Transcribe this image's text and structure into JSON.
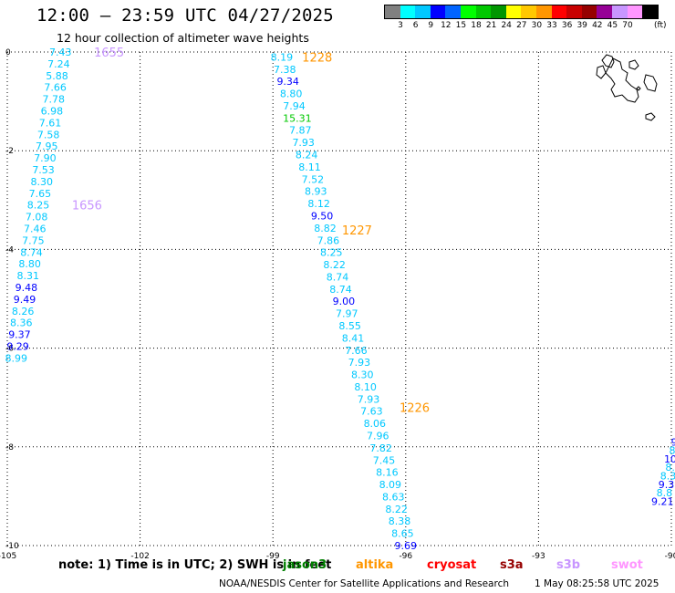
{
  "header": {
    "title": "12:00 — 23:59 UTC 04/27/2025",
    "subtitle": "12 hour collection of altimeter wave heights"
  },
  "legend": {
    "colors": [
      "#808080",
      "#00ffff",
      "#00c8ff",
      "#0000ff",
      "#0064ff",
      "#00ff00",
      "#00c800",
      "#009600",
      "#ffff00",
      "#ffc800",
      "#ff9600",
      "#ff0000",
      "#c80000",
      "#960000",
      "#960096",
      "#c896ff",
      "#ff96ff",
      "#000000"
    ],
    "labels": [
      "3",
      "6",
      "9",
      "12",
      "15",
      "18",
      "21",
      "24",
      "27",
      "30",
      "33",
      "36",
      "39",
      "42",
      "45",
      "70"
    ],
    "unit": "(ft)"
  },
  "axes": {
    "x_ticks": [
      "-105",
      "-102",
      "-99",
      "-96",
      "-93",
      "-90"
    ],
    "y_ticks": [
      "0",
      "-2",
      "-4",
      "-6",
      "-8",
      "-10"
    ]
  },
  "tracks": [
    {
      "time": "1655",
      "time_color": "#c896ff",
      "time_lon": -102.7,
      "time_lat": 0.0,
      "lon_start": -103.8,
      "lon_end": -104.8,
      "lat_start": 0.0,
      "lat_end": -6.2,
      "values": [
        "7.43",
        "7.24",
        "5.88",
        "7.66",
        "7.78",
        "6.98",
        "7.61",
        "7.58",
        "7.95",
        "7.90",
        "7.53",
        "8.30",
        "7.65",
        "8.25",
        "7.08",
        "7.46",
        "7.75",
        "8.74",
        "8.80",
        "8.31",
        "9.48",
        "9.49",
        "8.26",
        "8.36",
        "9.37",
        "9.29",
        "8.99"
      ]
    },
    {
      "time": "1656",
      "time_color": "#c896ff",
      "time_lon": -103.2,
      "time_lat": -3.1
    },
    {
      "time": "1228",
      "time_color": "#ff9600",
      "time_lon": -98.0,
      "time_lat": -0.1,
      "lon_start": -98.8,
      "lon_end": -96.0,
      "lat_start": -0.1,
      "lat_end": -10.0,
      "values": [
        "8.19",
        "7.38",
        "9.34",
        "8.80",
        "7.94",
        "15.31",
        "7.87",
        "7.93",
        "8.24",
        "8.11",
        "7.52",
        "8.93",
        "8.12",
        "9.50",
        "8.82",
        "7.86",
        "8.25",
        "8.22",
        "8.74",
        "8.74",
        "9.00",
        "7.97",
        "8.55",
        "8.41",
        "7.66",
        "7.93",
        "8.30",
        "8.10",
        "7.93",
        "7.63",
        "8.06",
        "7.96",
        "7.82",
        "7.45",
        "8.16",
        "8.09",
        "8.63",
        "8.22",
        "8.38",
        "8.65",
        "9.69"
      ]
    },
    {
      "time": "1227",
      "time_color": "#ff9600",
      "time_lon": -97.1,
      "time_lat": -3.6
    },
    {
      "time": "1226",
      "time_color": "#ff9600",
      "time_lon": -95.8,
      "time_lat": -7.2
    },
    {
      "time": "",
      "lon_start": -89.9,
      "lon_end": -90.2,
      "lat_start": -7.9,
      "lat_end": -9.1,
      "values": [
        "9.",
        "8.",
        "10.",
        "8.",
        "8.3",
        "9.3",
        "8.8",
        "9.21"
      ]
    }
  ],
  "notes": {
    "text": "note:  1) Time is in UTC; 2) SWH is in feet"
  },
  "satellites": [
    {
      "name": "jason3",
      "color": "#008000"
    },
    {
      "name": "altika",
      "color": "#ff9600"
    },
    {
      "name": "cryosat",
      "color": "#ff0000"
    },
    {
      "name": "s3a",
      "color": "#960000"
    },
    {
      "name": "s3b",
      "color": "#c896ff"
    },
    {
      "name": "swot",
      "color": "#ff96ff"
    }
  ],
  "footer": {
    "credit": "NOAA/NESDIS Center for Satellite Applications and Research",
    "timestamp": "1 May 08:25:58 UTC 2025"
  }
}
